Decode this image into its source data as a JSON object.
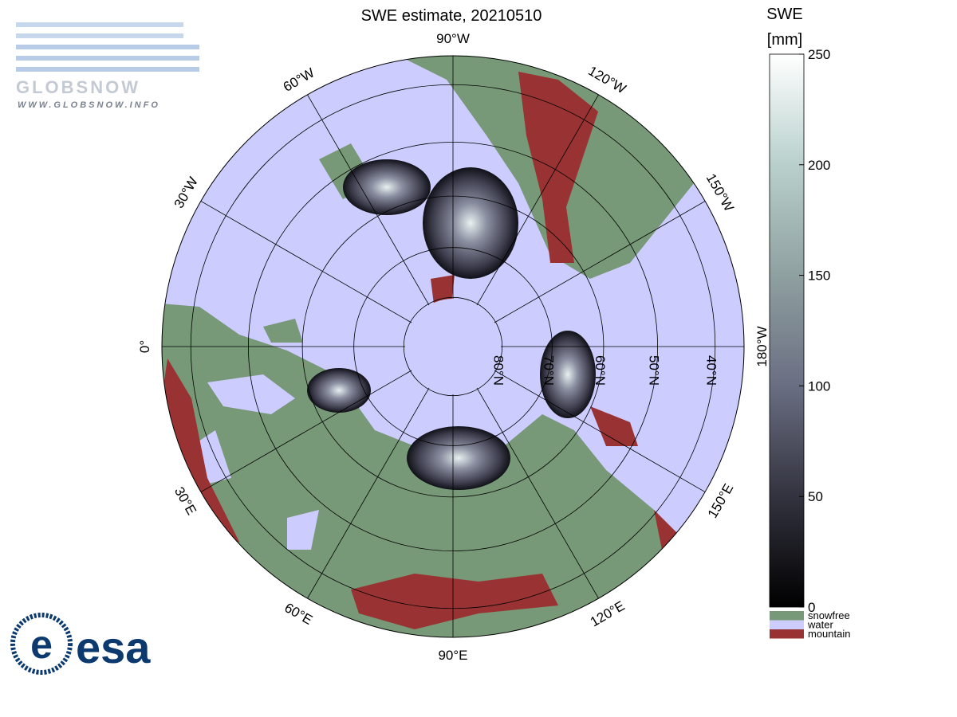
{
  "title": "SWE estimate, 20210510",
  "map": {
    "longitude_labels": [
      {
        "value": -90,
        "label": "90°W"
      },
      {
        "value": -120,
        "label": "120°W"
      },
      {
        "value": -150,
        "label": "150°W"
      },
      {
        "value": 180,
        "label": "180°W"
      },
      {
        "value": 150,
        "label": "150°E"
      },
      {
        "value": 120,
        "label": "120°E"
      },
      {
        "value": 90,
        "label": "90°E"
      },
      {
        "value": 60,
        "label": "60°E"
      },
      {
        "value": 30,
        "label": "30°E"
      },
      {
        "value": 0,
        "label": "0°"
      },
      {
        "value": -30,
        "label": "30°W"
      },
      {
        "value": -60,
        "label": "60°W"
      }
    ],
    "latitude_labels": [
      {
        "value": 80,
        "label": "80°N"
      },
      {
        "value": 70,
        "label": "70°N"
      },
      {
        "value": 60,
        "label": "60°N"
      },
      {
        "value": 50,
        "label": "50°N"
      },
      {
        "value": 40,
        "label": "40°N"
      }
    ]
  },
  "colorbar": {
    "title": "SWE",
    "unit": "[mm]",
    "range": [
      0,
      250
    ],
    "ticks": [
      0,
      50,
      100,
      150,
      200,
      250
    ],
    "categories": [
      {
        "name": "snowfree",
        "color": "#779977"
      },
      {
        "name": "water",
        "color": "#ccccff"
      },
      {
        "name": "mountain",
        "color": "#993333"
      }
    ]
  },
  "logos": {
    "globsnow": "GLOBSNOW",
    "globsnow_url": "WWW.GLOBSNOW.INFO",
    "esa": "esa"
  }
}
